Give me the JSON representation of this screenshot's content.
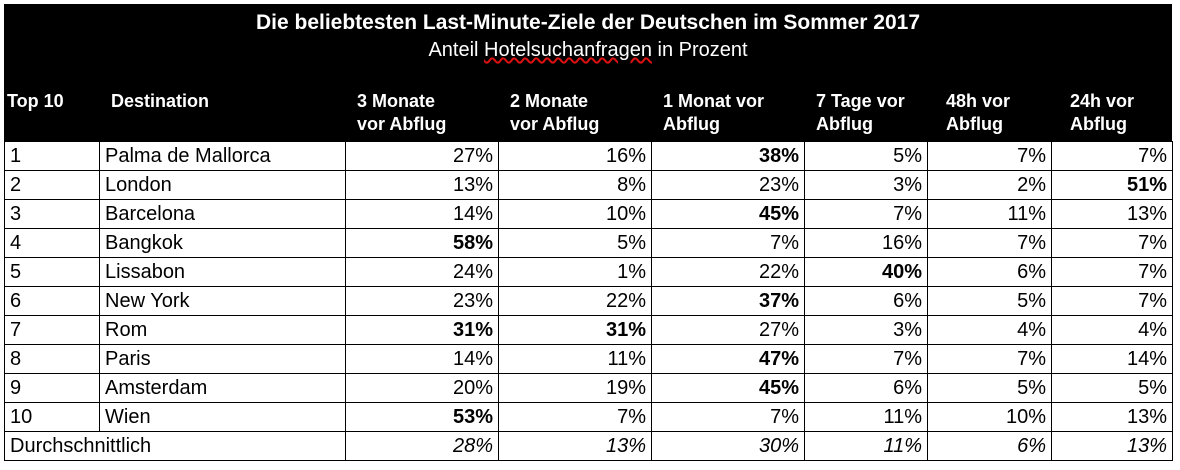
{
  "chart_data": {
    "type": "table",
    "title": "Die beliebtesten Last-Minute-Ziele der Deutschen im Sommer 2017",
    "subtitle_prefix": "Anteil ",
    "subtitle_marked": "Hotelsuchanfragen",
    "subtitle_suffix": " in Prozent",
    "columns": [
      [
        "Top 10",
        ""
      ],
      [
        "Destination",
        ""
      ],
      [
        "3 Monate",
        "vor Abflug"
      ],
      [
        "2 Monate",
        "vor Abflug"
      ],
      [
        "1 Monat vor",
        "Abflug"
      ],
      [
        "7 Tage vor",
        "Abflug"
      ],
      [
        "48h vor",
        "Abflug"
      ],
      [
        "24h vor",
        "Abflug"
      ]
    ],
    "rows": [
      {
        "rank": "1",
        "destination": "Palma de Mallorca",
        "values": [
          "27%",
          "16%",
          "38%",
          "5%",
          "7%",
          "7%"
        ],
        "bold": [
          2
        ]
      },
      {
        "rank": "2",
        "destination": "London",
        "values": [
          "13%",
          "8%",
          "23%",
          "3%",
          "2%",
          "51%"
        ],
        "bold": [
          5
        ]
      },
      {
        "rank": "3",
        "destination": "Barcelona",
        "values": [
          "14%",
          "10%",
          "45%",
          "7%",
          "11%",
          "13%"
        ],
        "bold": [
          2
        ]
      },
      {
        "rank": "4",
        "destination": "Bangkok",
        "values": [
          "58%",
          "5%",
          "7%",
          "16%",
          "7%",
          "7%"
        ],
        "bold": [
          0
        ]
      },
      {
        "rank": "5",
        "destination": "Lissabon",
        "values": [
          "24%",
          "1%",
          "22%",
          "40%",
          "6%",
          "7%"
        ],
        "bold": [
          3
        ]
      },
      {
        "rank": "6",
        "destination": "New York",
        "values": [
          "23%",
          "22%",
          "37%",
          "6%",
          "5%",
          "7%"
        ],
        "bold": [
          2
        ]
      },
      {
        "rank": "7",
        "destination": "Rom",
        "values": [
          "31%",
          "31%",
          "27%",
          "3%",
          "4%",
          "4%"
        ],
        "bold": [
          0,
          1
        ]
      },
      {
        "rank": "8",
        "destination": "Paris",
        "values": [
          "14%",
          "11%",
          "47%",
          "7%",
          "7%",
          "14%"
        ],
        "bold": [
          2
        ]
      },
      {
        "rank": "9",
        "destination": "Amsterdam",
        "values": [
          "20%",
          "19%",
          "45%",
          "6%",
          "5%",
          "5%"
        ],
        "bold": [
          2
        ]
      },
      {
        "rank": "10",
        "destination": "Wien",
        "values": [
          "53%",
          "7%",
          "7%",
          "11%",
          "10%",
          "13%"
        ],
        "bold": [
          0
        ]
      }
    ],
    "average": {
      "label": "Durchschnittlich",
      "values": [
        "28%",
        "13%",
        "30%",
        "11%",
        "6%",
        "13%"
      ]
    }
  }
}
